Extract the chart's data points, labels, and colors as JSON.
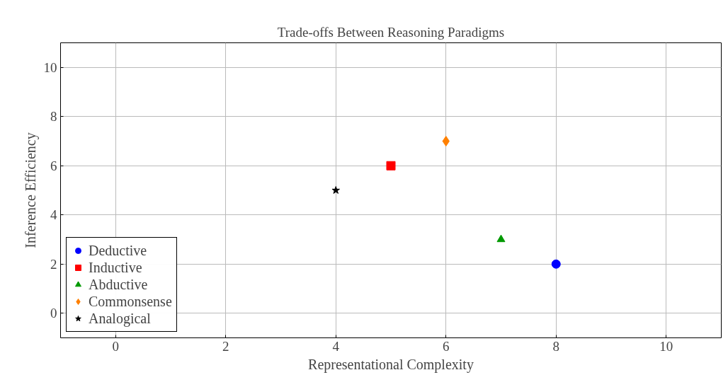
{
  "chart_data": {
    "type": "scatter",
    "title": "Trade-offs Between Reasoning Paradigms",
    "xlabel": "Representational Complexity",
    "ylabel": "Inference Efficiency",
    "xlim": [
      -1,
      11
    ],
    "ylim": [
      -1,
      11
    ],
    "xticks": [
      0,
      2,
      4,
      6,
      8,
      10
    ],
    "yticks": [
      0,
      2,
      4,
      6,
      8,
      10
    ],
    "grid": true,
    "legend": "bottom left",
    "series": [
      {
        "name": "Deductive",
        "color": "#0000ff",
        "marker": "circle",
        "x": [
          8
        ],
        "values": [
          2
        ]
      },
      {
        "name": "Inductive",
        "color": "#ff0000",
        "marker": "square",
        "x": [
          5
        ],
        "values": [
          6
        ]
      },
      {
        "name": "Abductive",
        "color": "#009900",
        "marker": "triangle",
        "x": [
          7
        ],
        "values": [
          3
        ]
      },
      {
        "name": "Commonsense",
        "color": "#ff8000",
        "marker": "diamond",
        "x": [
          6
        ],
        "values": [
          7
        ]
      },
      {
        "name": "Analogical",
        "color": "#000000",
        "marker": "star",
        "x": [
          4
        ],
        "values": [
          5
        ]
      }
    ]
  }
}
